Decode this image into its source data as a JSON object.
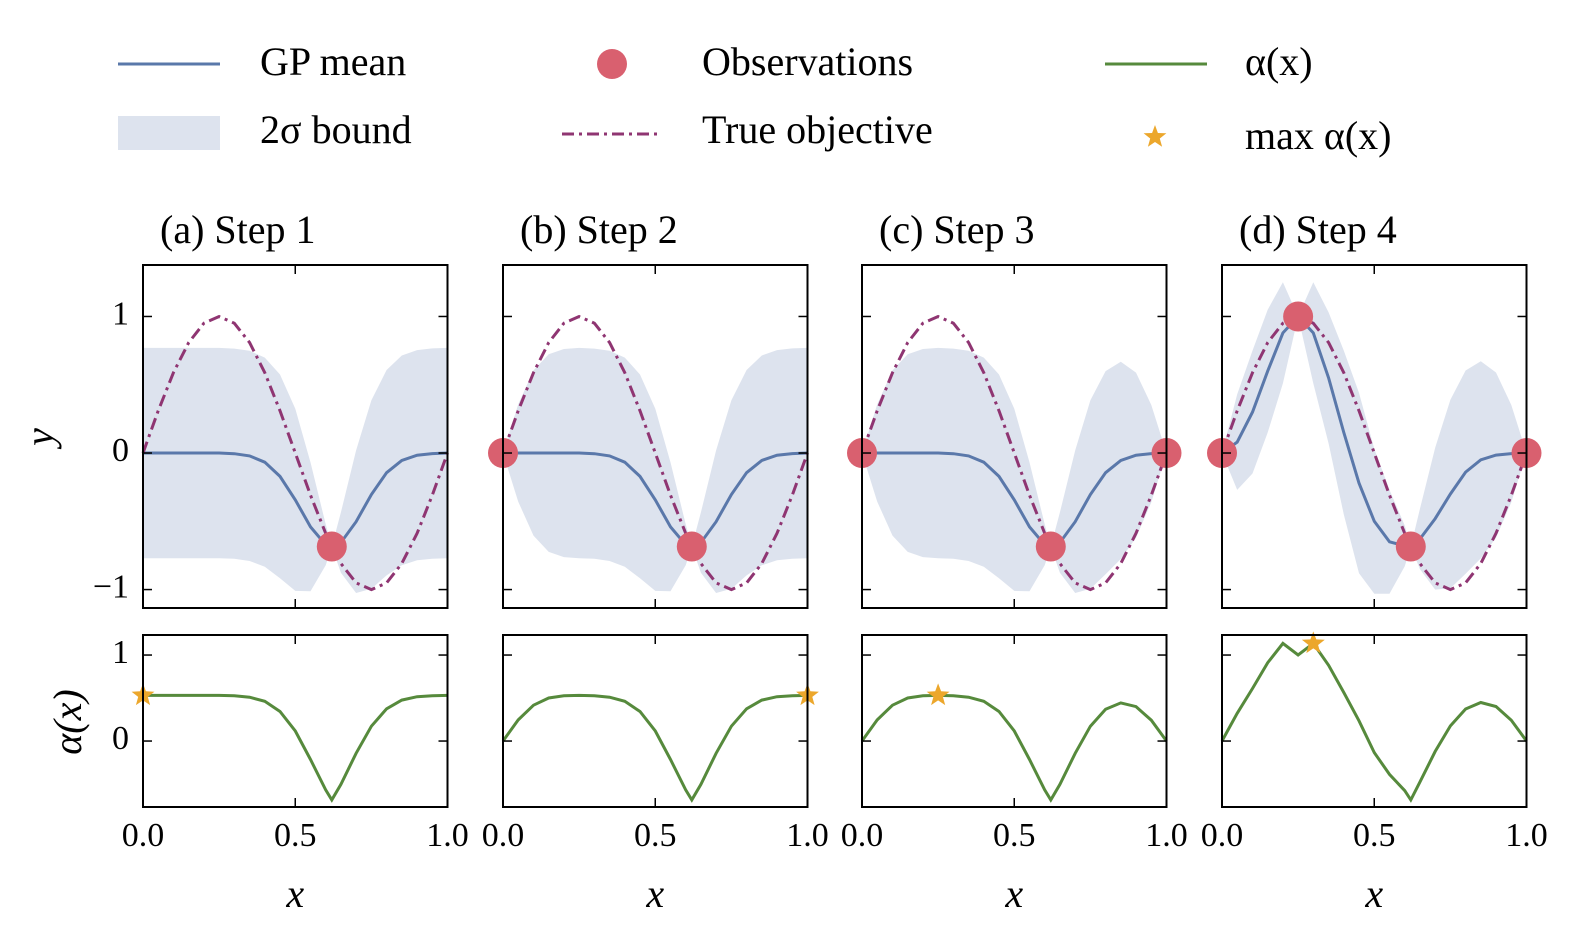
{
  "legend": {
    "mean": {
      "name": "GP mean",
      "color": "#5a78aa"
    },
    "band": {
      "name": "2σ bound",
      "color": "#dde3ee"
    },
    "observations": {
      "name": "Observations",
      "color": "#d9606f"
    },
    "objective": {
      "name": "True objective",
      "color": "#8f3572"
    },
    "acquisition": {
      "name": "α(x)",
      "color": "#568a3c"
    },
    "max": {
      "name": "max α(x)",
      "color": "#eca72c"
    }
  },
  "axes": {
    "xlim": [
      0,
      1
    ],
    "xticks": [
      {
        "value": 0,
        "label": "0.0"
      },
      0.5,
      {
        "value": 1,
        "label": "1.0"
      }
    ],
    "xlabel": "x",
    "ylim": [
      -1.135,
      1.377
    ],
    "yticks": [
      {
        "value": -1,
        "label": "−1"
      },
      0,
      1
    ],
    "ylabel": "y",
    "acq_ylim": [
      -0.767,
      1.233
    ],
    "acq_yticks": [
      0,
      1
    ],
    "acq_ylabel": "α(x)"
  },
  "chart_data": [
    {
      "type": "line",
      "title": "(a) Step 1",
      "x": [
        0,
        0.05,
        0.1,
        0.15,
        0.2,
        0.25,
        0.3,
        0.35,
        0.4,
        0.45,
        0.5,
        0.55,
        0.6,
        0.62,
        0.65,
        0.7,
        0.75,
        0.8,
        0.85,
        0.9,
        0.95,
        1
      ],
      "mean": [
        0,
        0,
        0,
        0,
        0,
        0,
        -0.005,
        -0.021,
        -0.067,
        -0.171,
        -0.343,
        -0.541,
        -0.672,
        -0.685,
        -0.656,
        -0.503,
        -0.304,
        -0.144,
        -0.054,
        -0.016,
        -0.004,
        0
      ],
      "lower": [
        -0.77,
        -0.77,
        -0.77,
        -0.77,
        -0.77,
        -0.77,
        -0.775,
        -0.791,
        -0.833,
        -0.917,
        -1.01,
        -1.013,
        -0.822,
        -0.685,
        -0.877,
        -1.025,
        -0.994,
        -0.896,
        -0.822,
        -0.786,
        -0.774,
        -0.77
      ],
      "upper": [
        0.77,
        0.77,
        0.77,
        0.77,
        0.77,
        0.77,
        0.765,
        0.749,
        0.699,
        0.575,
        0.324,
        -0.069,
        -0.522,
        -0.685,
        -0.435,
        0.019,
        0.386,
        0.608,
        0.714,
        0.754,
        0.766,
        0.77
      ],
      "objective": [
        0,
        0.309,
        0.588,
        0.809,
        0.951,
        1,
        0.951,
        0.809,
        0.588,
        0.309,
        0,
        -0.309,
        -0.588,
        -0.685,
        -0.809,
        -0.951,
        -1,
        -0.951,
        -0.809,
        -0.588,
        -0.309,
        0
      ],
      "acquisition": [
        0.531,
        0.531,
        0.531,
        0.531,
        0.531,
        0.531,
        0.526,
        0.51,
        0.462,
        0.344,
        0.117,
        -0.215,
        -0.568,
        -0.685,
        -0.504,
        -0.143,
        0.172,
        0.375,
        0.476,
        0.515,
        0.527,
        0.531
      ],
      "observations": {
        "x": [
          0.62
        ],
        "y": [
          -0.685
        ]
      },
      "max": {
        "x": 0,
        "y": 0.531
      }
    },
    {
      "type": "line",
      "title": "(b) Step 2",
      "x": [
        0,
        0.05,
        0.1,
        0.15,
        0.2,
        0.25,
        0.3,
        0.35,
        0.4,
        0.45,
        0.5,
        0.55,
        0.6,
        0.62,
        0.65,
        0.7,
        0.75,
        0.8,
        0.85,
        0.9,
        0.95,
        1
      ],
      "mean": [
        0,
        0,
        0,
        0,
        0,
        0,
        -0.005,
        -0.021,
        -0.067,
        -0.171,
        -0.343,
        -0.541,
        -0.672,
        -0.685,
        -0.656,
        -0.503,
        -0.304,
        -0.144,
        -0.054,
        -0.016,
        -0.004,
        0
      ],
      "lower": [
        0,
        -0.356,
        -0.605,
        -0.724,
        -0.762,
        -0.77,
        -0.775,
        -0.791,
        -0.833,
        -0.917,
        -1.01,
        -1.013,
        -0.822,
        -0.685,
        -0.877,
        -1.025,
        -0.994,
        -0.896,
        -0.822,
        -0.786,
        -0.774,
        -0.77
      ],
      "upper": [
        0,
        0.356,
        0.605,
        0.724,
        0.762,
        0.77,
        0.765,
        0.749,
        0.699,
        0.575,
        0.324,
        -0.069,
        -0.522,
        -0.685,
        -0.435,
        0.019,
        0.386,
        0.608,
        0.714,
        0.754,
        0.766,
        0.77
      ],
      "objective": [
        0,
        0.309,
        0.588,
        0.809,
        0.951,
        1,
        0.951,
        0.809,
        0.588,
        0.309,
        0,
        -0.309,
        -0.588,
        -0.685,
        -0.809,
        -0.951,
        -1,
        -0.951,
        -0.809,
        -0.588,
        -0.309,
        0
      ],
      "acquisition": [
        0,
        0.246,
        0.417,
        0.5,
        0.526,
        0.531,
        0.526,
        0.51,
        0.462,
        0.344,
        0.117,
        -0.215,
        -0.568,
        -0.685,
        -0.504,
        -0.143,
        0.172,
        0.375,
        0.476,
        0.515,
        0.527,
        0.531
      ],
      "observations": {
        "x": [
          0,
          0.62
        ],
        "y": [
          0,
          -0.685
        ]
      },
      "max": {
        "x": 1,
        "y": 0.531
      }
    },
    {
      "type": "line",
      "title": "(c) Step 3",
      "x": [
        0,
        0.05,
        0.1,
        0.15,
        0.2,
        0.25,
        0.3,
        0.35,
        0.4,
        0.45,
        0.5,
        0.55,
        0.6,
        0.62,
        0.65,
        0.7,
        0.75,
        0.8,
        0.85,
        0.9,
        0.95,
        1
      ],
      "mean": [
        0,
        0,
        0,
        0,
        0,
        0,
        -0.005,
        -0.021,
        -0.067,
        -0.171,
        -0.343,
        -0.541,
        -0.672,
        -0.685,
        -0.656,
        -0.503,
        -0.304,
        -0.144,
        -0.054,
        -0.016,
        -0.004,
        0
      ],
      "lower": [
        0,
        -0.356,
        -0.605,
        -0.724,
        -0.762,
        -0.77,
        -0.775,
        -0.791,
        -0.833,
        -0.917,
        -1.01,
        -1.013,
        -0.822,
        -0.685,
        -0.877,
        -1.025,
        -0.994,
        -0.888,
        -0.776,
        -0.621,
        -0.36,
        0
      ],
      "upper": [
        0,
        0.356,
        0.605,
        0.724,
        0.762,
        0.77,
        0.765,
        0.749,
        0.699,
        0.575,
        0.324,
        -0.069,
        -0.522,
        -0.685,
        -0.435,
        0.019,
        0.386,
        0.6,
        0.668,
        0.589,
        0.352,
        0
      ],
      "objective": [
        0,
        0.309,
        0.588,
        0.809,
        0.951,
        1,
        0.951,
        0.809,
        0.588,
        0.309,
        0,
        -0.309,
        -0.588,
        -0.685,
        -0.809,
        -0.951,
        -1,
        -0.951,
        -0.809,
        -0.588,
        -0.309,
        0
      ],
      "acquisition": [
        0,
        0.246,
        0.417,
        0.5,
        0.526,
        0.531,
        0.526,
        0.51,
        0.462,
        0.344,
        0.117,
        -0.215,
        -0.568,
        -0.685,
        -0.504,
        -0.143,
        0.172,
        0.369,
        0.444,
        0.401,
        0.242,
        0
      ],
      "observations": {
        "x": [
          0,
          0.62,
          1
        ],
        "y": [
          0,
          -0.685,
          0
        ]
      },
      "max": {
        "x": 0.25,
        "y": 0.531
      }
    },
    {
      "type": "line",
      "title": "(d) Step 4",
      "x": [
        0,
        0.05,
        0.1,
        0.15,
        0.2,
        0.25,
        0.3,
        0.35,
        0.4,
        0.45,
        0.5,
        0.55,
        0.6,
        0.62,
        0.65,
        0.7,
        0.75,
        0.8,
        0.85,
        0.9,
        0.95,
        1
      ],
      "mean": [
        0,
        0.08,
        0.3,
        0.6,
        0.88,
        1,
        0.88,
        0.55,
        0.15,
        -0.22,
        -0.5,
        -0.65,
        -0.68,
        -0.685,
        -0.63,
        -0.48,
        -0.3,
        -0.14,
        -0.05,
        -0.015,
        -0.004,
        0
      ],
      "lower": [
        0,
        -0.27,
        -0.15,
        0.15,
        0.51,
        1,
        0.51,
        0.07,
        -0.45,
        -0.88,
        -1.03,
        -1.03,
        -0.83,
        -0.685,
        -0.85,
        -1,
        -0.99,
        -0.884,
        -0.772,
        -0.62,
        -0.36,
        0
      ],
      "upper": [
        0,
        0.43,
        0.75,
        1.05,
        1.25,
        1,
        1.25,
        1.03,
        0.75,
        0.44,
        0.03,
        -0.27,
        -0.53,
        -0.685,
        -0.41,
        0.04,
        0.39,
        0.604,
        0.672,
        0.59,
        0.352,
        0
      ],
      "objective": [
        0,
        0.309,
        0.588,
        0.809,
        0.951,
        1,
        0.951,
        0.809,
        0.588,
        0.309,
        0,
        -0.309,
        -0.588,
        -0.685,
        -0.809,
        -0.951,
        -1,
        -0.951,
        -0.809,
        -0.588,
        -0.309,
        0
      ],
      "acquisition": [
        0,
        0.322,
        0.611,
        0.911,
        1.135,
        1,
        1.135,
        0.881,
        0.564,
        0.235,
        -0.134,
        -0.388,
        -0.576,
        -0.685,
        -0.478,
        -0.121,
        0.176,
        0.373,
        0.448,
        0.402,
        0.242,
        0
      ],
      "observations": {
        "x": [
          0,
          0.25,
          0.62,
          1
        ],
        "y": [
          0,
          1,
          -0.685,
          0
        ]
      },
      "max": {
        "x": 0.3,
        "y": 1.135
      }
    }
  ]
}
